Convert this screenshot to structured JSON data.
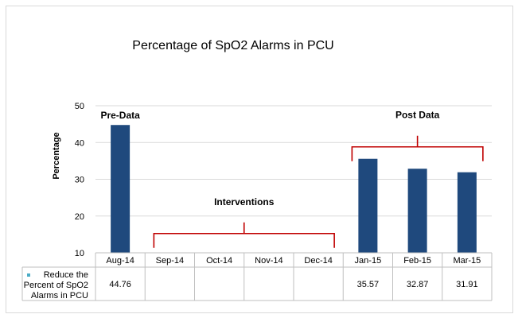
{
  "chart_data": {
    "type": "bar",
    "title": "Percentage of SpO2 Alarms in PCU",
    "ylabel": "Percentage",
    "xlabel": "",
    "ylim": [
      10,
      50
    ],
    "yticks": [
      10,
      20,
      30,
      40,
      50
    ],
    "grid": true,
    "categories": [
      "Aug-14",
      "Sep-14",
      "Oct-14",
      "Nov-14",
      "Dec-14",
      "Jan-15",
      "Feb-15",
      "Mar-15"
    ],
    "series": [
      {
        "name": "Reduce the Percent of SpO2 Alarms in PCU",
        "values": [
          44.76,
          null,
          null,
          null,
          null,
          35.57,
          32.87,
          31.91
        ],
        "value_labels": [
          "44.76",
          "",
          "",
          "",
          "",
          "35.57",
          "32.87",
          "31.91"
        ],
        "color": "#1f497d"
      }
    ],
    "legend_placement": "data-table-left",
    "annotations": [
      {
        "text": "Pre-Data",
        "from": 0,
        "to": 0,
        "bracket": false
      },
      {
        "text": "Interventions",
        "from": 1,
        "to": 4,
        "bracket": true
      },
      {
        "text": "Post Data",
        "from": 5,
        "to": 7,
        "bracket": true
      }
    ],
    "bracket_color": "#c00000"
  }
}
